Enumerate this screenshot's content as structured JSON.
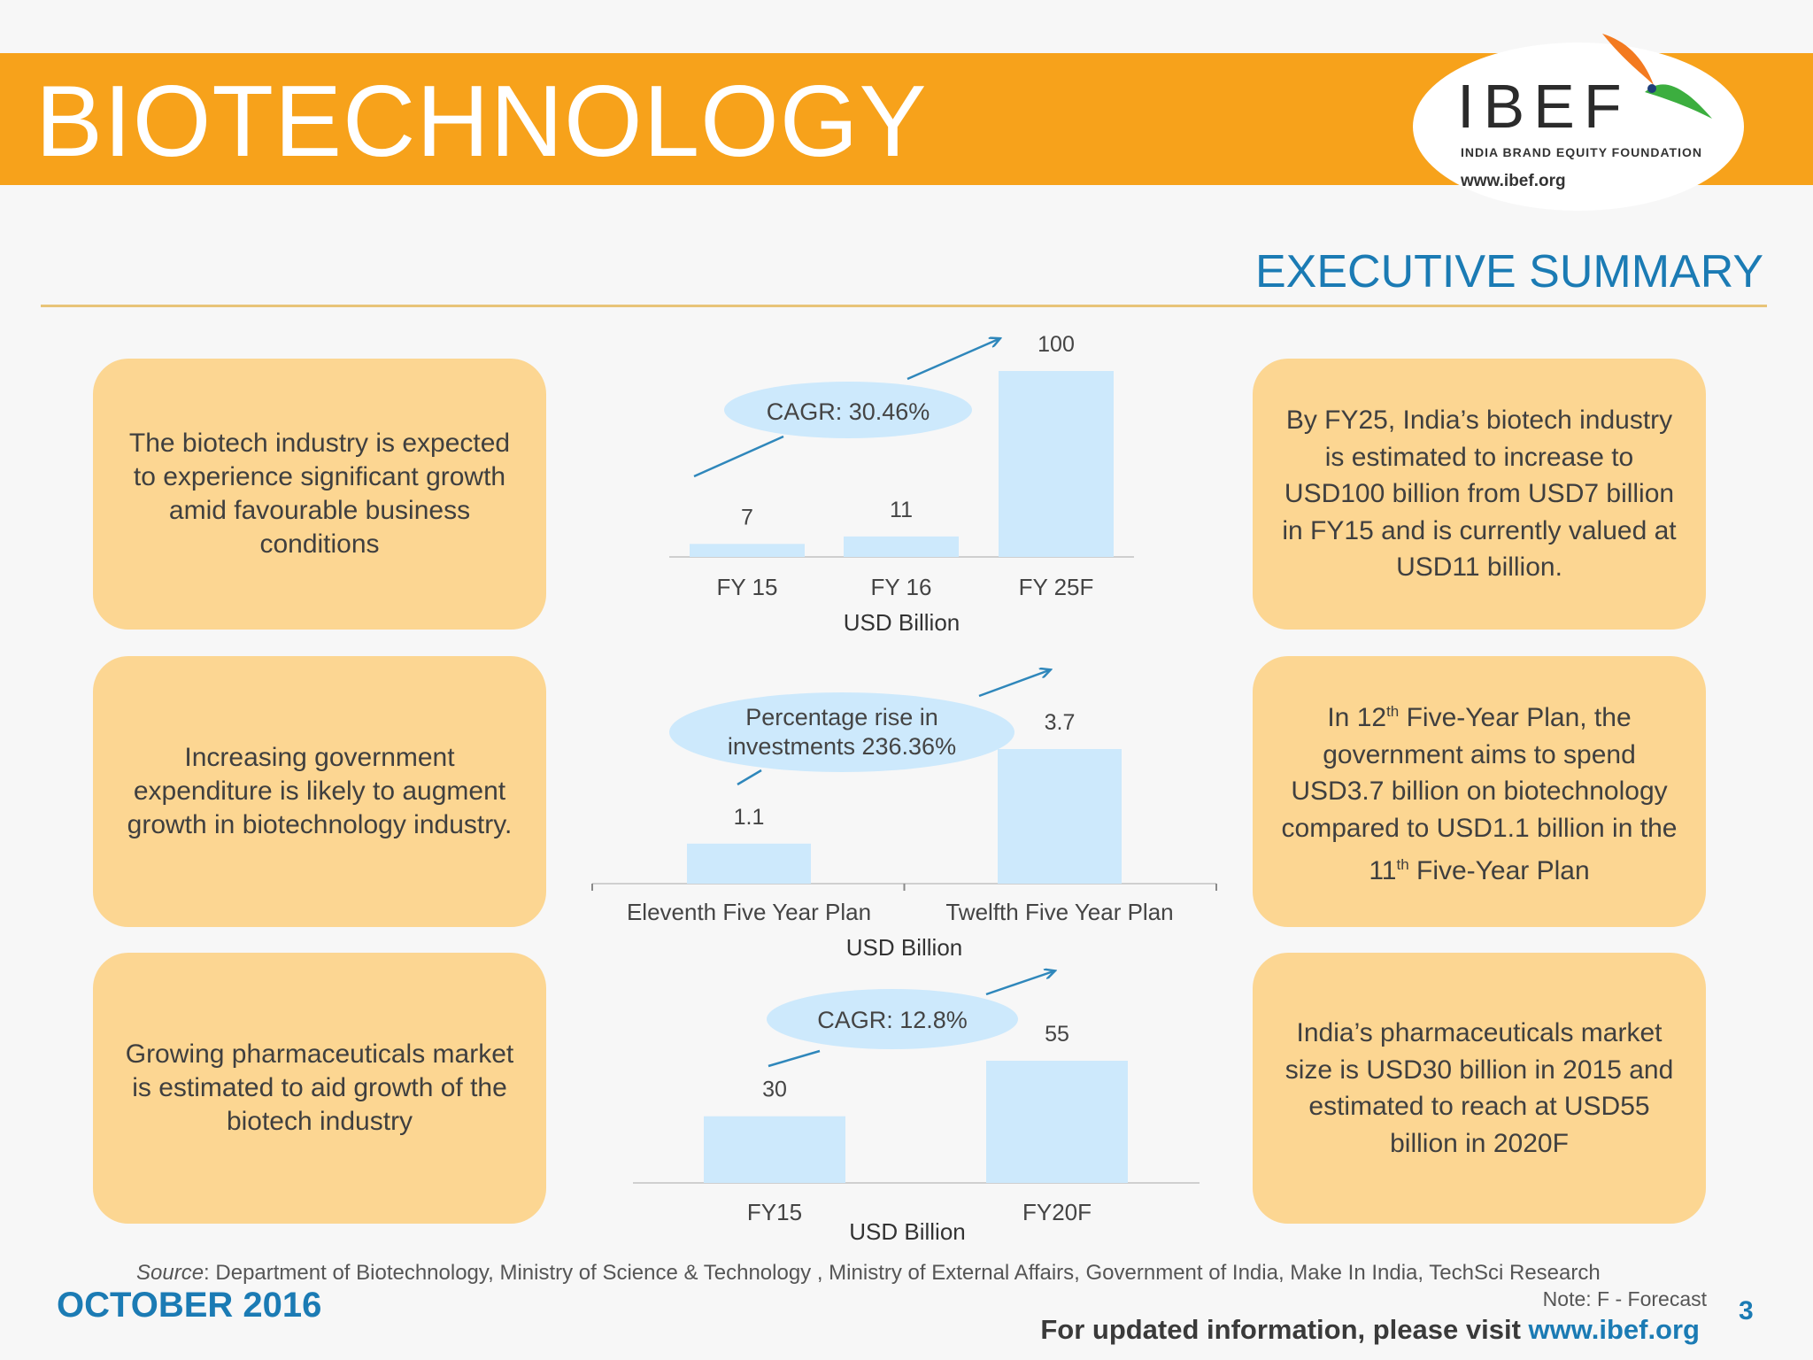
{
  "header": {
    "title": "BIOTECHNOLOGY",
    "logo_name": "IBEF",
    "logo_subtitle": "INDIA BRAND EQUITY FOUNDATION",
    "logo_url": "www.ibef.org"
  },
  "section_title": "EXECUTIVE SUMMARY",
  "left_boxes": [
    "The biotech industry is expected to experience significant growth amid favourable business conditions",
    "Increasing government expenditure is likely to augment growth in biotechnology industry.",
    "Growing pharmaceuticals market is estimated to aid growth of the biotech industry"
  ],
  "right_boxes": [
    "By FY25, India’s biotech industry is estimated to increase to USD100 billion from USD7 billion in FY15 and is currently valued at USD11 billion.",
    {
      "p1": "In 12",
      "sup1": "th",
      "p2": " Five-Year Plan, the government aims to spend USD3.7 billion on biotechnology compared to USD1.1 billion in the 11",
      "sup2": "th",
      "p3": " Five-Year Plan"
    },
    "India’s pharmaceuticals market size is USD30 billion in 2015 and estimated to reach at USD55 billion in 2020F"
  ],
  "chart_data": [
    {
      "type": "bar",
      "categories": [
        "FY 15",
        "FY 16",
        "FY 25F"
      ],
      "values": [
        7,
        11,
        100
      ],
      "data_labels": [
        "7",
        "11",
        "100"
      ],
      "xlabel": "USD Billion",
      "annotation": "CAGR: 30.46%"
    },
    {
      "type": "bar",
      "categories": [
        "Eleventh Five Year Plan",
        "Twelfth Five Year Plan"
      ],
      "values": [
        1.1,
        3.7
      ],
      "data_labels": [
        "1.1",
        "3.7"
      ],
      "xlabel": "USD Billion",
      "annotation": [
        "Percentage rise in",
        "investments 236.36%"
      ]
    },
    {
      "type": "bar",
      "categories": [
        "FY15",
        "FY20F"
      ],
      "values": [
        30,
        55
      ],
      "data_labels": [
        "30",
        "55"
      ],
      "xlabel": "USD Billion",
      "annotation": "CAGR: 12.8%"
    }
  ],
  "footer": {
    "source_label": "Source",
    "source_text": ": Department of Biotechnology, Ministry of Science & Technology , Ministry of External Affairs, Government of India, Make In India, TechSci Research",
    "note": "Note: F - Forecast",
    "date": "OCTOBER 2016",
    "visit_text": "For updated information, please visit ",
    "visit_link": "www.ibef.org",
    "page_number": "3"
  },
  "colors": {
    "header_orange": "#f7a21b",
    "box_fill": "#fcd692",
    "bar_fill": "#cde9fc",
    "oval_fill": "#cde9fc",
    "accent_blue": "#1b7bb4",
    "arrow_blue": "#2f87bb"
  }
}
